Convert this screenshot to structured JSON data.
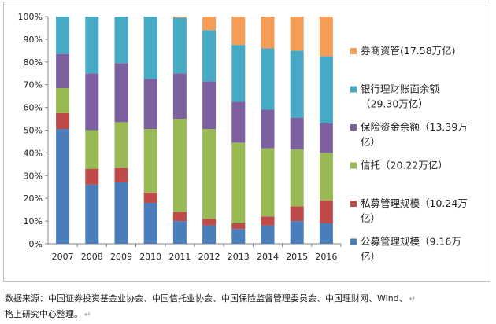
{
  "chart_data": {
    "type": "bar",
    "stacked": true,
    "percent": true,
    "categories": [
      "2007",
      "2008",
      "2009",
      "2010",
      "2011",
      "2012",
      "2013",
      "2014",
      "2015",
      "2016"
    ],
    "ylim": [
      0,
      100
    ],
    "yticks": [
      "0%",
      "10%",
      "20%",
      "30%",
      "40%",
      "50%",
      "60%",
      "70%",
      "80%",
      "90%",
      "100%"
    ],
    "grid": false,
    "legend_position": "right",
    "series": [
      {
        "name": "公募管理规模",
        "label_lines": [
          "公募管理规模（9.16万",
          "亿）"
        ],
        "color": "#4a7ebb",
        "values": [
          50.5,
          26,
          27,
          18,
          10,
          8,
          6.5,
          8,
          10,
          9
        ]
      },
      {
        "name": "私募管理规模",
        "label_lines": [
          "私募管理规模（10.24万",
          "亿）"
        ],
        "color": "#be4b48",
        "values": [
          7,
          7,
          6.5,
          4.5,
          4,
          3,
          2.5,
          4,
          6.5,
          10
        ]
      },
      {
        "name": "信托",
        "label_lines": [
          "信托（20.22万亿）"
        ],
        "color": "#98b954",
        "values": [
          11,
          17,
          20,
          28,
          41,
          39.5,
          35.5,
          30,
          25,
          21
        ]
      },
      {
        "name": "保险资金余额",
        "label_lines": [
          "保险资金余额（13.39万",
          "亿）"
        ],
        "color": "#7d60a0",
        "values": [
          15,
          25,
          26,
          22,
          20,
          21,
          18,
          17,
          14,
          13
        ]
      },
      {
        "name": "银行理财账面余额",
        "label_lines": [
          "银行理财账面余额",
          "（29.30万亿）"
        ],
        "color": "#46aac5",
        "values": [
          16.5,
          25,
          20.5,
          27.5,
          24.5,
          22.5,
          25,
          27,
          29.5,
          29.5
        ]
      },
      {
        "name": "券商资管",
        "label_lines": [
          "券商资管(17.58万亿)"
        ],
        "color": "#f59d56",
        "values": [
          0,
          0,
          0,
          0,
          0.5,
          6,
          12.5,
          14,
          15,
          17.5
        ]
      }
    ]
  },
  "source_note": {
    "line1": "数据来源：中国证券投资基金业协会、中国信托业协会、中国保险监督管理委员会、中国理财网、Wind、",
    "line2": "格上研究中心整理。"
  }
}
